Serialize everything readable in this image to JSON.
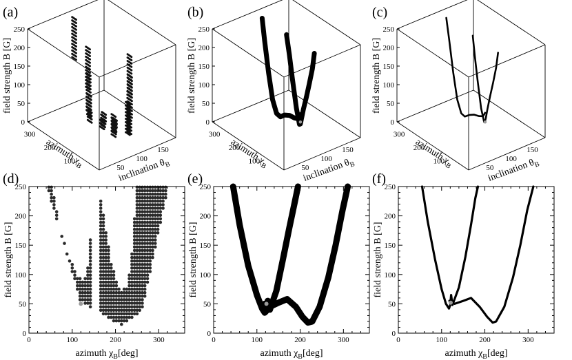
{
  "chart_data": [
    {
      "panel": "(a)",
      "type": "scatter",
      "view": "3d",
      "xlabel": "azimuth χ",
      "xlabel_sub": "B",
      "ylabel": "inclination θ",
      "ylabel_sub": "B",
      "zlabel": "field strength B [G]",
      "xlim": [
        0,
        360
      ],
      "ylim": [
        0,
        180
      ],
      "zlim": [
        0,
        250
      ],
      "x_ticks": [
        "100",
        "200",
        "300"
      ],
      "y_ticks": [
        "50",
        "100",
        "150"
      ],
      "z_ticks": [
        "0",
        "50",
        "100",
        "150",
        "200",
        "250"
      ],
      "style": "dots",
      "series": [
        {
          "x": [
            40,
            55,
            75,
            100,
            120,
            135,
            150,
            165,
            178,
            190,
            205,
            220,
            240,
            260,
            280,
            300,
            318
          ],
          "z": [
            250,
            185,
            130,
            88,
            60,
            40,
            28,
            22,
            24,
            30,
            20,
            18,
            28,
            60,
            105,
            165,
            250
          ]
        }
      ]
    },
    {
      "panel": "(b)",
      "type": "line",
      "view": "3d",
      "xlabel": "azimuth χ",
      "xlabel_sub": "B",
      "ylabel": "inclination θ",
      "ylabel_sub": "B",
      "zlabel": "field strength B [G]",
      "xlim": [
        0,
        360
      ],
      "ylim": [
        0,
        180
      ],
      "zlim": [
        0,
        250
      ],
      "x_ticks": [
        "100",
        "200",
        "300"
      ],
      "y_ticks": [
        "50",
        "100",
        "150"
      ],
      "z_ticks": [
        "0",
        "50",
        "100",
        "150",
        "200",
        "250"
      ],
      "style": "thick",
      "series": [
        {
          "x": [
            50,
            60,
            75,
            90,
            105,
            115,
            120,
            125,
            140,
            160,
            175,
            190
          ],
          "z": [
            250,
            205,
            160,
            118,
            80,
            50,
            35,
            32,
            70,
            140,
            200,
            250
          ]
        },
        {
          "x": [
            120,
            130,
            150,
            175,
            200,
            220,
            240,
            260,
            280,
            300,
            312
          ],
          "z": [
            60,
            45,
            40,
            38,
            30,
            18,
            20,
            50,
            115,
            195,
            250
          ]
        }
      ]
    },
    {
      "panel": "(c)",
      "type": "line",
      "view": "3d",
      "xlabel": "azimuth χ",
      "xlabel_sub": "B",
      "ylabel": "inclination θ",
      "ylabel_sub": "B",
      "zlabel": "field strength B [G]",
      "xlim": [
        0,
        360
      ],
      "ylim": [
        0,
        180
      ],
      "zlim": [
        0,
        250
      ],
      "x_ticks": [
        "100",
        "200",
        "300"
      ],
      "y_ticks": [
        "50",
        "100",
        "150"
      ],
      "z_ticks": [
        "0",
        "50",
        "100",
        "150",
        "200",
        "250"
      ],
      "style": "thin",
      "series": [
        {
          "x": [
            55,
            65,
            80,
            95,
            108,
            117,
            121,
            125,
            140,
            158,
            172,
            182
          ],
          "z": [
            250,
            205,
            160,
            118,
            80,
            50,
            40,
            38,
            70,
            140,
            200,
            250
          ]
        },
        {
          "x": [
            120,
            130,
            150,
            175,
            200,
            222,
            240,
            260,
            280,
            300,
            315
          ],
          "z": [
            65,
            52,
            45,
            40,
            30,
            18,
            20,
            50,
            115,
            195,
            250
          ]
        }
      ]
    },
    {
      "panel": "(d)",
      "type": "scatter",
      "view": "2d",
      "xlabel": "azimuth χ",
      "xlabel_sub": "B",
      "xlabel_unit": "[deg]",
      "ylabel": "field strength B [G]",
      "xlim": [
        0,
        360
      ],
      "ylim": [
        0,
        250
      ],
      "x_ticks": [
        0,
        100,
        200,
        300
      ],
      "y_ticks": [
        0,
        50,
        100,
        150,
        200,
        250
      ],
      "style": "dots",
      "region": {
        "outer_left_top": 42,
        "outer_bottom_x": 210,
        "outer_bottom_y": 15,
        "outer_right_top": 322,
        "holes": [
          {
            "x": [
              55,
              70,
              90,
              110,
              128,
              140,
              148
            ],
            "y": [
              250,
              180,
              135,
              100,
              90,
              130,
              250
            ]
          },
          {
            "x": [
              148,
              160
            ],
            "y": [
              250,
              250
            ]
          },
          {
            "x": [
              162,
              170,
              190,
              210,
              228,
              240,
              248
            ],
            "y": [
              250,
              210,
              120,
              70,
              80,
              150,
              250
            ]
          }
        ]
      },
      "marker": {
        "x": 120,
        "y": 50,
        "color": "#9a9a9a"
      }
    },
    {
      "panel": "(e)",
      "type": "line",
      "view": "2d",
      "xlabel": "azimuth χ",
      "xlabel_sub": "B",
      "xlabel_unit": "[deg]",
      "ylabel": "field strength B [G]",
      "xlim": [
        0,
        360
      ],
      "ylim": [
        0,
        250
      ],
      "x_ticks": [
        0,
        100,
        200,
        300
      ],
      "y_ticks": [
        0,
        50,
        100,
        150,
        200,
        250
      ],
      "style": "thick",
      "series": [
        {
          "x": [
            45,
            60,
            80,
            100,
            112,
            118,
            122,
            125,
            130,
            145,
            160,
            175,
            188,
            195
          ],
          "y": [
            250,
            185,
            115,
            65,
            42,
            35,
            38,
            55,
            40,
            72,
            125,
            180,
            225,
            250
          ]
        },
        {
          "x": [
            118,
            130,
            150,
            170,
            190,
            205,
            218,
            228,
            245,
            265,
            282,
            298,
            310
          ],
          "y": [
            50,
            45,
            52,
            58,
            45,
            28,
            18,
            20,
            45,
            95,
            150,
            210,
            250
          ]
        }
      ],
      "marker": {
        "x": 122,
        "y": 50,
        "color": "#9a9a9a"
      }
    },
    {
      "panel": "(f)",
      "type": "line",
      "view": "2d",
      "xlabel": "azimuth χ",
      "xlabel_sub": "B",
      "xlabel_unit": "[deg]",
      "ylabel": "field strength B [G]",
      "xlim": [
        0,
        360
      ],
      "ylim": [
        0,
        250
      ],
      "x_ticks": [
        0,
        100,
        200,
        300
      ],
      "y_ticks": [
        0,
        50,
        100,
        150,
        200,
        250
      ],
      "style": "thin",
      "series": [
        {
          "x": [
            55,
            68,
            85,
            100,
            110,
            117,
            120,
            122,
            125,
            140,
            155,
            168,
            178,
            184
          ],
          "y": [
            250,
            190,
            125,
            75,
            50,
            42,
            48,
            65,
            48,
            78,
            130,
            185,
            230,
            250
          ]
        },
        {
          "x": [
            118,
            130,
            150,
            168,
            188,
            205,
            218,
            226,
            245,
            265,
            282,
            298,
            312
          ],
          "y": [
            55,
            50,
            55,
            60,
            45,
            28,
            18,
            20,
            45,
            95,
            150,
            210,
            250
          ]
        }
      ],
      "marker": {
        "x": 121,
        "y": 52,
        "color": "#9a9a9a"
      }
    }
  ],
  "colors": {
    "ink": "#000000",
    "dots": "#2a2a2a",
    "marker": "#9a9a9a"
  }
}
